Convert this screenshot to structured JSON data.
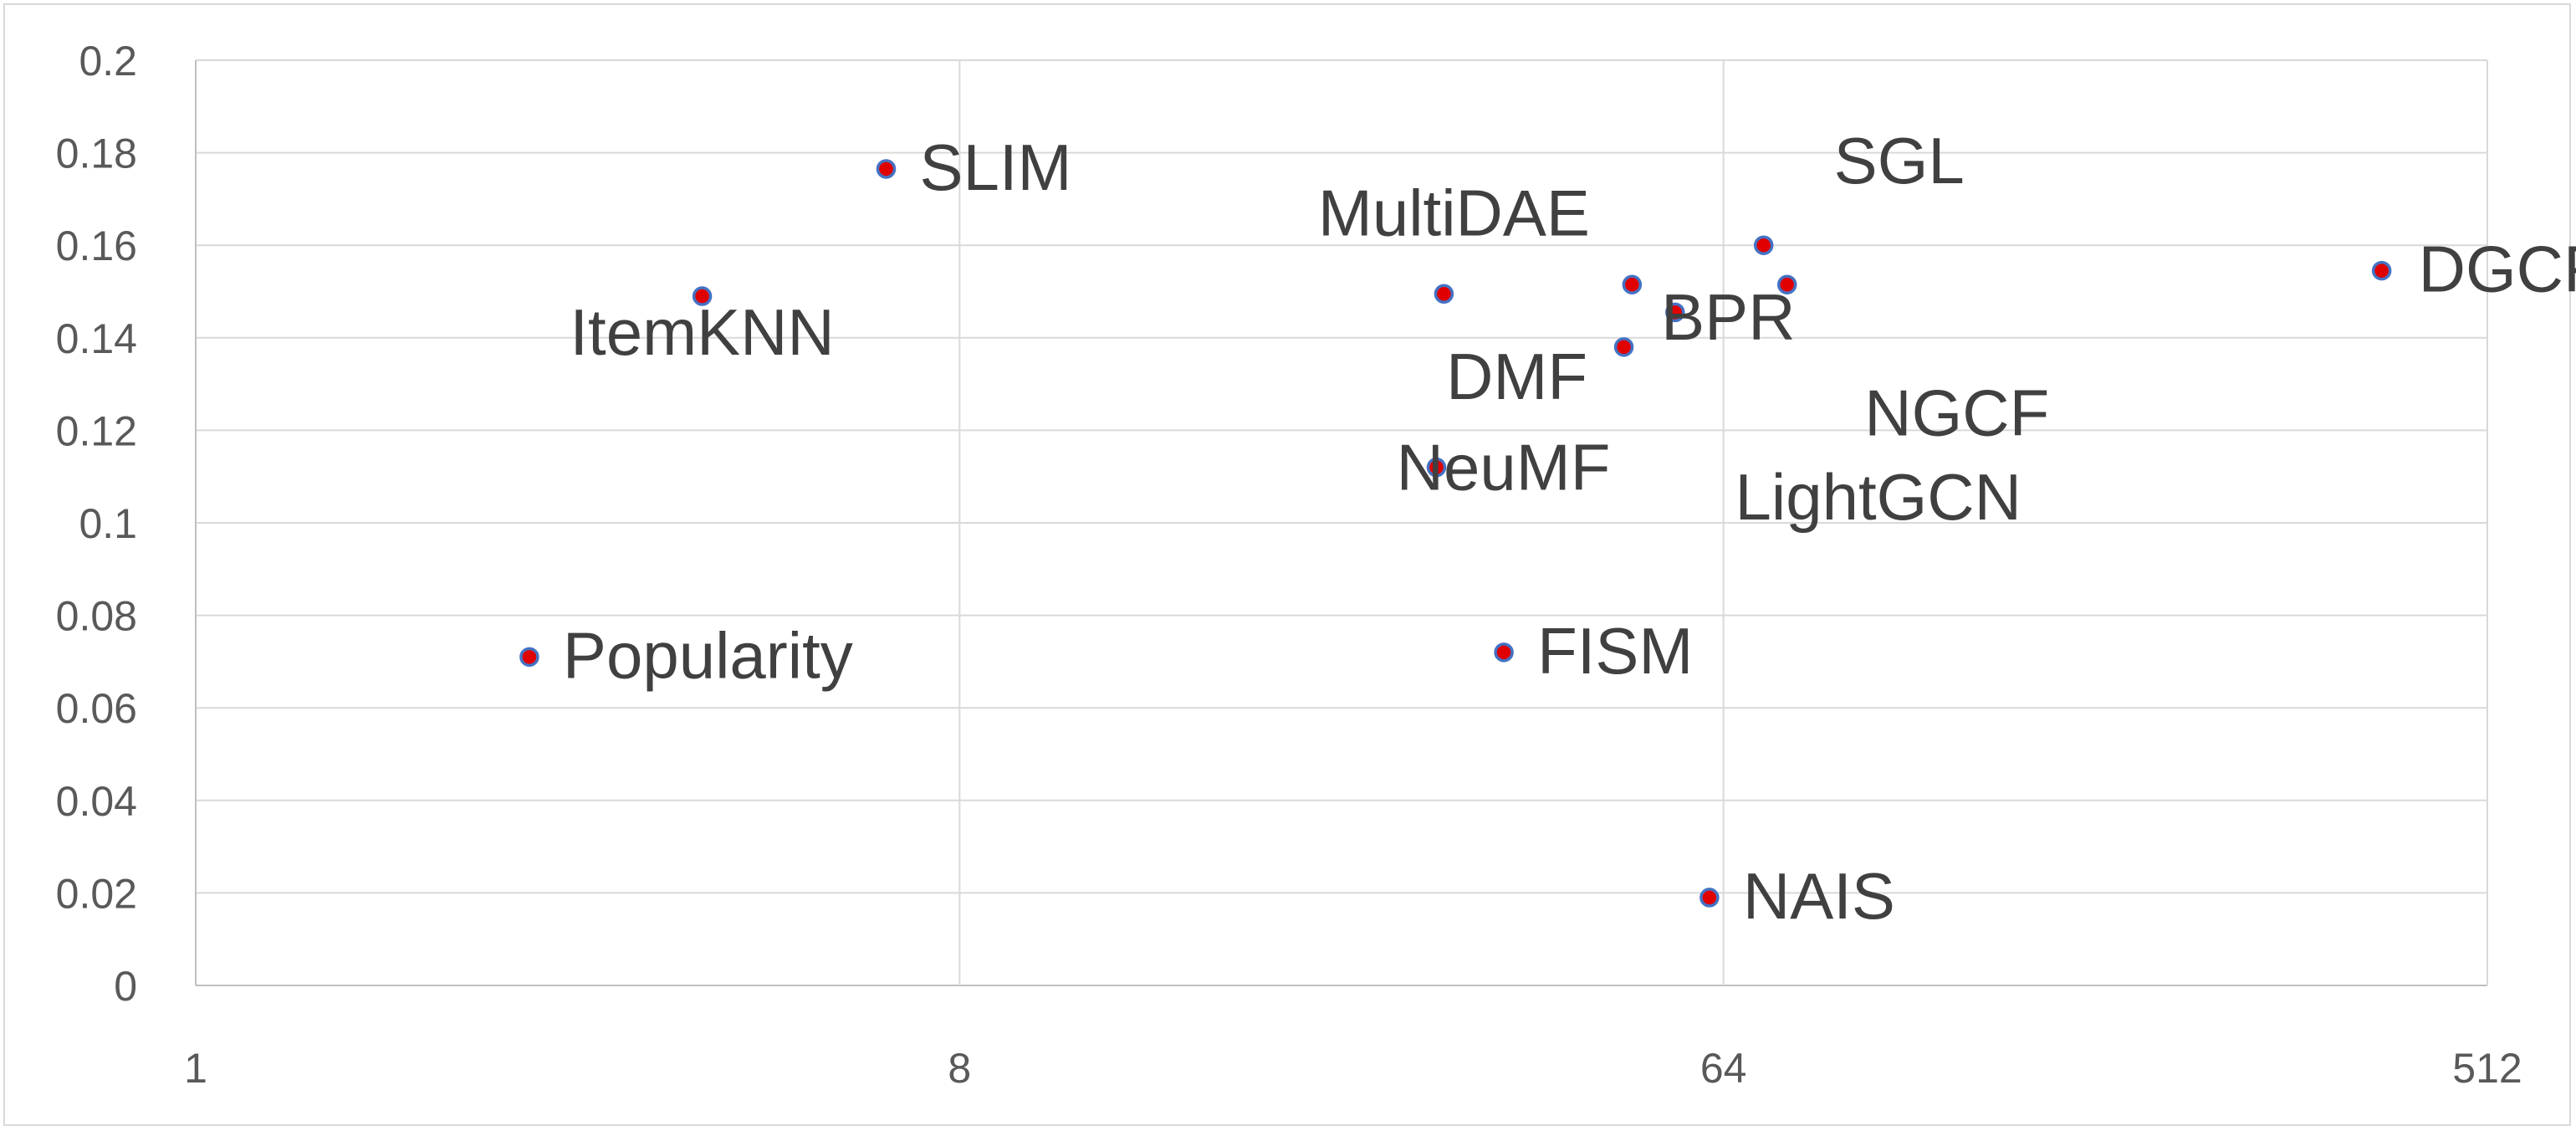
{
  "chart_data": {
    "type": "scatter",
    "title": "",
    "xlabel": "",
    "ylabel": "",
    "x_scale": "log2",
    "xlim": [
      1,
      512
    ],
    "ylim": [
      0,
      0.2
    ],
    "x_ticks": [
      "1",
      "8",
      "64",
      "512"
    ],
    "y_ticks": [
      "0",
      "0.02",
      "0.04",
      "0.06",
      "0.08",
      "0.1",
      "0.12",
      "0.14",
      "0.16",
      "0.18",
      "0.2"
    ],
    "grid": true,
    "legend": "none",
    "marker_fill": "#e00000",
    "marker_edge": "#4472c4",
    "points": [
      {
        "label": "Popularity",
        "x": 2.48,
        "y": 0.071
      },
      {
        "label": "ItemKNN",
        "x": 3.97,
        "y": 0.149
      },
      {
        "label": "SLIM",
        "x": 6.55,
        "y": 0.1765
      },
      {
        "label": "NeuMF",
        "x": 29.3,
        "y": 0.112
      },
      {
        "label": "MultiDAE",
        "x": 29.9,
        "y": 0.1495
      },
      {
        "label": "FISM",
        "x": 35.2,
        "y": 0.072
      },
      {
        "label": "DMF",
        "x": 48.8,
        "y": 0.138
      },
      {
        "label": "BPR",
        "x": 49.9,
        "y": 0.1515
      },
      {
        "label": "NGCF",
        "x": 56.1,
        "y": 0.1455
      },
      {
        "label": "NAIS",
        "x": 61.6,
        "y": 0.019
      },
      {
        "label": "SGL",
        "x": 71.4,
        "y": 0.16
      },
      {
        "label": "LightGCN",
        "x": 76.1,
        "y": 0.1515
      },
      {
        "label": "DGCF",
        "x": 384.0,
        "y": 0.1545
      }
    ]
  }
}
